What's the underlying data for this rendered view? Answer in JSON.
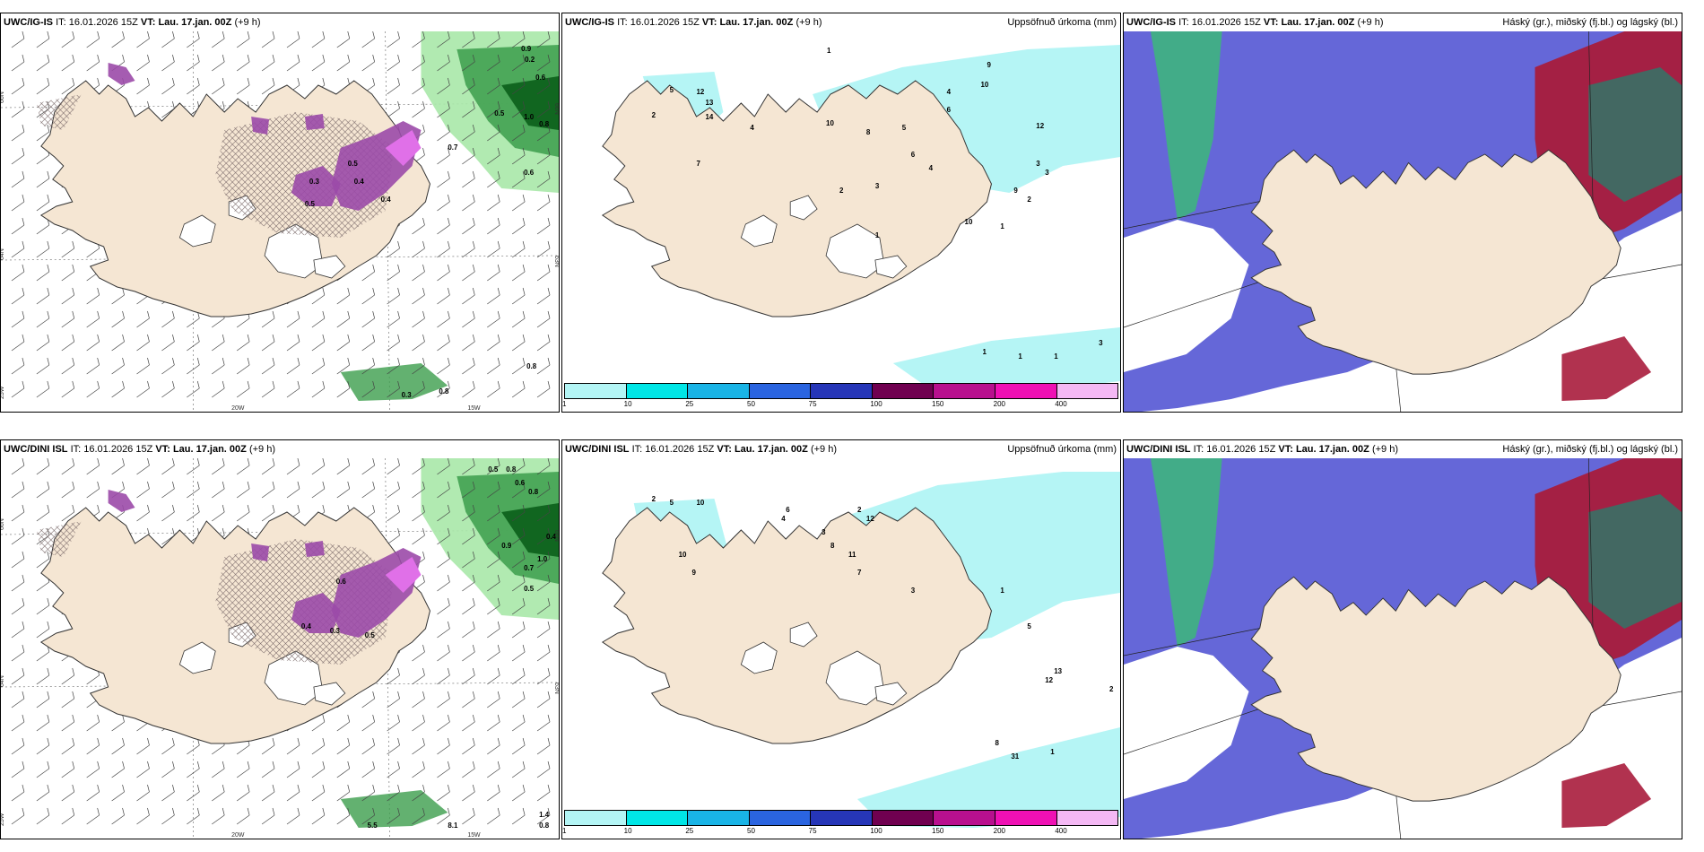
{
  "rows": [
    {
      "panels": [
        {
          "model": "UWC/IG-IS",
          "it_label": "IT:",
          "it": "16.01.2026 15Z",
          "vt_label": "VT:",
          "vt": "Lau. 17.jan. 00Z",
          "lead": "(+9 h)",
          "right": ""
        },
        {
          "model": "UWC/IG-IS",
          "it_label": "IT:",
          "it": "16.01.2026 15Z",
          "vt_label": "VT:",
          "vt": "Lau. 17.jan. 00Z",
          "lead": "(+9 h)",
          "right": "Uppsöfnuð úrkoma (mm)"
        },
        {
          "model": "UWC/IG-IS",
          "it_label": "IT:",
          "it": "16.01.2026 15Z",
          "vt_label": "VT:",
          "vt": "Lau. 17.jan. 00Z",
          "lead": "(+9 h)",
          "right": "Háský (gr.), miðský (fj.bl.) og lágský (bl.)"
        }
      ],
      "icing_labels": [
        "0.9",
        "0.2",
        "0.6",
        "0.5",
        "1.0",
        "0.8",
        "0.5",
        "0.7",
        "0.3",
        "0.4",
        "0.6",
        "0.5",
        "0.4",
        "0.8",
        "0.8",
        "0.3"
      ],
      "precip_labels": [
        "1",
        "5",
        "12",
        "13",
        "14",
        "2",
        "7",
        "4",
        "10",
        "8",
        "5",
        "6",
        "4",
        "3",
        "2",
        "1",
        "9",
        "10",
        "12",
        "4",
        "6",
        "3",
        "2",
        "1",
        "10",
        "9",
        "3",
        "1",
        "1",
        "1",
        "3"
      ]
    },
    {
      "panels": [
        {
          "model": "UWC/DINI ISL",
          "it_label": "IT:",
          "it": "16.01.2026 15Z",
          "vt_label": "VT:",
          "vt": "Lau. 17.jan. 00Z",
          "lead": "(+9 h)",
          "right": ""
        },
        {
          "model": "UWC/DINI ISL",
          "it_label": "IT:",
          "it": "16.01.2026 15Z",
          "vt_label": "VT:",
          "vt": "Lau. 17.jan. 00Z",
          "lead": "(+9 h)",
          "right": "Uppsöfnuð úrkoma (mm)"
        },
        {
          "model": "UWC/DINI ISL",
          "it_label": "IT:",
          "it": "16.01.2026 15Z",
          "vt_label": "VT:",
          "vt": "Lau. 17.jan. 00Z",
          "lead": "(+9 h)",
          "right": "Háský (gr.), miðský (fj.bl.) og lágský (bl.)"
        }
      ],
      "icing_labels": [
        "0.5",
        "0.8",
        "0.6",
        "0.8",
        "0.4",
        "0.9",
        "1.0",
        "0.7",
        "0.5",
        "0.3",
        "0.4",
        "0.5",
        "0.6",
        "1.4",
        "0.8",
        "5.5",
        "8.1"
      ],
      "precip_labels": [
        "2",
        "5",
        "10",
        "6",
        "3",
        "2",
        "12",
        "11",
        "8",
        "7",
        "10",
        "9",
        "3",
        "2",
        "1",
        "31",
        "8",
        "13",
        "12",
        "5",
        "1",
        "4"
      ]
    }
  ],
  "axis_labels": {
    "lat66": "66N",
    "lat64": "64N",
    "lat62": "63N",
    "lon20": "20W",
    "lon15": "15W",
    "lon25": "25W"
  },
  "colorbar": {
    "ticks": [
      "1",
      "10",
      "25",
      "50",
      "75",
      "100",
      "150",
      "200",
      "400"
    ],
    "colors": [
      "#b3f5f5",
      "#00e6e6",
      "#19b4e6",
      "#2a64e0",
      "#2636b8",
      "#700050",
      "#b8108e",
      "#ef10b4",
      "#f4b8f4"
    ]
  },
  "colors": {
    "land": "#f5e6d3",
    "coast": "#333333",
    "precip": "#b5f5f5",
    "high": "#3cb87a",
    "mid": "#5d5fd6",
    "low": "#a81c3c",
    "icing": "#9b4aa8",
    "hatch": "#7a6a6a"
  }
}
